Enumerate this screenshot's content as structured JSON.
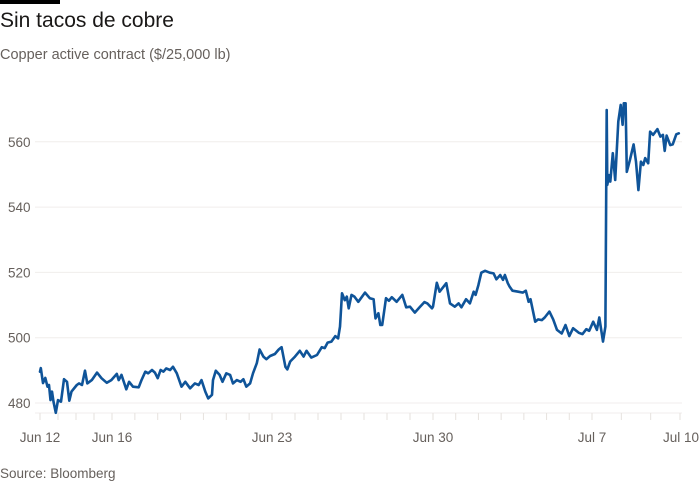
{
  "header": {
    "title": "Sin tacos de cobre",
    "subtitle": "Copper active contract ($/25,000 lb)"
  },
  "footer": {
    "source": "Source: Bloomberg"
  },
  "colors": {
    "line": "#0f5499",
    "grid": "#f0eeec",
    "text": "#66605c",
    "topbar": "#000000"
  },
  "chart_data": {
    "type": "line",
    "title": "Sin tacos de cobre",
    "subtitle": "Copper active contract ($/25,000 lb)",
    "xlabel": "",
    "ylabel": "",
    "ylim": [
      477,
      575
    ],
    "grid": "horizontal",
    "y_ticks": [
      480,
      500,
      520,
      540,
      560
    ],
    "x_ticks": [
      {
        "label": "Jun 12",
        "date": "06-12 00:00"
      },
      {
        "label": "Jun 16",
        "date": "06-16 00:00"
      },
      {
        "label": "Jun 23",
        "date": "06-23 00:00"
      },
      {
        "label": "Jun 30",
        "date": "06-30 00:00"
      },
      {
        "label": "Jul 7",
        "date": "07-07 00:00"
      },
      {
        "label": "Jul 10",
        "date": "07-10 00:00"
      }
    ],
    "series": [
      {
        "points": [
          [
            "06-12 00:00",
            489.6
          ],
          [
            "06-12 01:00",
            490.7
          ],
          [
            "06-12 04:00",
            486.1
          ],
          [
            "06-12 07:00",
            487.7
          ],
          [
            "06-12 10:00",
            485.0
          ],
          [
            "06-12 12:00",
            485.5
          ],
          [
            "06-12 14:00",
            480.9
          ],
          [
            "06-12 16:00",
            483.5
          ],
          [
            "06-12 18:00",
            480.4
          ],
          [
            "06-12 21:00",
            477.0
          ],
          [
            "06-13 00:00",
            480.9
          ],
          [
            "06-13 04:00",
            480.4
          ],
          [
            "06-13 08:00",
            487.3
          ],
          [
            "06-13 12:00",
            486.5
          ],
          [
            "06-13 15:00",
            480.7
          ],
          [
            "06-13 18:00",
            483.5
          ],
          [
            "06-14 01:00",
            485.5
          ],
          [
            "06-14 04:00",
            486.0
          ],
          [
            "06-14 08:00",
            485.5
          ],
          [
            "06-14 12:00",
            489.9
          ],
          [
            "06-14 15:00",
            486.0
          ],
          [
            "06-14 21:00",
            487.0
          ],
          [
            "06-15 04:00",
            489.3
          ],
          [
            "06-15 10:00",
            487.6
          ],
          [
            "06-15 17:00",
            486.2
          ],
          [
            "06-15 23:00",
            487.0
          ],
          [
            "06-16 05:00",
            488.9
          ],
          [
            "06-16 07:00",
            487.0
          ],
          [
            "06-16 10:00",
            488.6
          ],
          [
            "06-16 15:00",
            484.2
          ],
          [
            "06-16 18:00",
            486.5
          ],
          [
            "06-16 22:00",
            485.0
          ],
          [
            "06-17 04:00",
            484.8
          ],
          [
            "06-17 07:00",
            487.0
          ],
          [
            "06-17 11:00",
            489.6
          ],
          [
            "06-17 14:00",
            489.1
          ],
          [
            "06-17 18:00",
            490.1
          ],
          [
            "06-17 21:00",
            489.3
          ],
          [
            "06-18 00:00",
            487.6
          ],
          [
            "06-18 03:00",
            490.1
          ],
          [
            "06-18 06:00",
            489.6
          ],
          [
            "06-18 09:00",
            490.6
          ],
          [
            "06-18 13:00",
            490.1
          ],
          [
            "06-18 16:00",
            491.1
          ],
          [
            "06-18 20:00",
            489.1
          ],
          [
            "06-19 01:00",
            485.0
          ],
          [
            "06-19 05:00",
            486.5
          ],
          [
            "06-19 10:00",
            484.5
          ],
          [
            "06-19 15:00",
            486.0
          ],
          [
            "06-19 19:00",
            485.5
          ],
          [
            "06-19 22:00",
            487.0
          ],
          [
            "06-20 02:00",
            483.5
          ],
          [
            "06-20 05:00",
            481.4
          ],
          [
            "06-20 09:00",
            482.5
          ],
          [
            "06-20 10:00",
            487.0
          ],
          [
            "06-20 13:00",
            489.9
          ],
          [
            "06-20 17:00",
            488.6
          ],
          [
            "06-20 20:00",
            486.5
          ],
          [
            "06-21 00:00",
            489.1
          ],
          [
            "06-21 04:00",
            488.6
          ],
          [
            "06-21 07:00",
            486.0
          ],
          [
            "06-21 11:00",
            487.0
          ],
          [
            "06-21 15:00",
            486.5
          ],
          [
            "06-21 18:00",
            487.3
          ],
          [
            "06-21 21:00",
            485.0
          ],
          [
            "06-22 01:00",
            486.0
          ],
          [
            "06-22 04:00",
            489.1
          ],
          [
            "06-22 08:00",
            492.2
          ],
          [
            "06-22 11:00",
            496.4
          ],
          [
            "06-22 15:00",
            494.2
          ],
          [
            "06-22 18:00",
            493.4
          ],
          [
            "06-22 22:00",
            494.4
          ],
          [
            "06-23 03:00",
            495.0
          ],
          [
            "06-23 07:00",
            496.4
          ],
          [
            "06-23 10:00",
            497.1
          ],
          [
            "06-23 14:00",
            491.1
          ],
          [
            "06-23 16:00",
            490.3
          ],
          [
            "06-23 19:00",
            492.7
          ],
          [
            "06-24 00:00",
            494.2
          ],
          [
            "06-24 05:00",
            496.0
          ],
          [
            "06-24 09:00",
            494.2
          ],
          [
            "06-24 12:00",
            496.0
          ],
          [
            "06-24 17:00",
            493.9
          ],
          [
            "06-24 23:00",
            494.7
          ],
          [
            "06-25 04:00",
            497.1
          ],
          [
            "06-25 07:00",
            496.8
          ],
          [
            "06-25 10:00",
            498.5
          ],
          [
            "06-25 14:00",
            498.8
          ],
          [
            "06-25 18:00",
            500.5
          ],
          [
            "06-25 21:00",
            499.8
          ],
          [
            "06-25 23:00",
            503.4
          ],
          [
            "06-26 01:00",
            513.6
          ],
          [
            "06-26 04:00",
            511.5
          ],
          [
            "06-26 06:00",
            512.6
          ],
          [
            "06-26 08:00",
            509.0
          ],
          [
            "06-26 11:00",
            513.1
          ],
          [
            "06-26 14:00",
            512.6
          ],
          [
            "06-26 18:00",
            511.0
          ],
          [
            "06-27 01:00",
            513.8
          ],
          [
            "06-27 06:00",
            512.1
          ],
          [
            "06-27 10:00",
            511.8
          ],
          [
            "06-27 12:00",
            505.9
          ],
          [
            "06-27 15:00",
            507.5
          ],
          [
            "06-27 17:00",
            503.9
          ],
          [
            "06-27 19:00",
            503.9
          ],
          [
            "06-27 23:00",
            512.1
          ],
          [
            "06-28 02:00",
            511.3
          ],
          [
            "06-28 05:00",
            512.4
          ],
          [
            "06-28 10:00",
            511.0
          ],
          [
            "06-28 16:00",
            513.1
          ],
          [
            "06-28 20:00",
            509.3
          ],
          [
            "06-29 00:00",
            509.5
          ],
          [
            "06-29 05:00",
            507.7
          ],
          [
            "06-29 10:00",
            509.3
          ],
          [
            "06-29 15:00",
            510.9
          ],
          [
            "06-29 18:00",
            510.5
          ],
          [
            "06-29 23:00",
            509.0
          ],
          [
            "06-30 00:00",
            509.5
          ],
          [
            "06-30 04:00",
            516.8
          ],
          [
            "06-30 07:00",
            514.1
          ],
          [
            "06-30 14:00",
            516.7
          ],
          [
            "06-30 18:00",
            510.5
          ],
          [
            "06-30 23:00",
            509.5
          ],
          [
            "07-01 03:00",
            510.5
          ],
          [
            "07-01 06:00",
            509.3
          ],
          [
            "07-01 11:00",
            511.8
          ],
          [
            "07-01 15:00",
            510.5
          ],
          [
            "07-01 19:00",
            514.1
          ],
          [
            "07-01 21:00",
            513.1
          ],
          [
            "07-02 00:00",
            516.1
          ],
          [
            "07-02 03:00",
            519.9
          ],
          [
            "07-02 07:00",
            520.5
          ],
          [
            "07-02 12:00",
            519.9
          ],
          [
            "07-02 16:00",
            519.7
          ],
          [
            "07-02 19:00",
            517.9
          ],
          [
            "07-02 23:00",
            519.2
          ],
          [
            "07-03 02:00",
            517.7
          ],
          [
            "07-03 04:00",
            519.2
          ],
          [
            "07-03 07:00",
            516.7
          ],
          [
            "07-03 09:00",
            515.6
          ],
          [
            "07-03 12:00",
            514.4
          ],
          [
            "07-03 18:00",
            514.1
          ],
          [
            "07-03 23:00",
            513.8
          ],
          [
            "07-04 02:00",
            514.4
          ],
          [
            "07-04 05:00",
            511.0
          ],
          [
            "07-04 07:00",
            511.8
          ],
          [
            "07-04 12:00",
            504.9
          ],
          [
            "07-04 15:00",
            505.6
          ],
          [
            "07-04 19:00",
            505.4
          ],
          [
            "07-04 22:00",
            506.2
          ],
          [
            "07-05 03:00",
            508.0
          ],
          [
            "07-05 07:00",
            505.6
          ],
          [
            "07-05 11:00",
            502.4
          ],
          [
            "07-05 16:00",
            501.3
          ],
          [
            "07-05 20:00",
            503.9
          ],
          [
            "07-06 00:00",
            500.5
          ],
          [
            "07-06 04:00",
            502.9
          ],
          [
            "07-06 10:00",
            501.5
          ],
          [
            "07-06 14:00",
            501.1
          ],
          [
            "07-06 18:00",
            502.6
          ],
          [
            "07-06 21:00",
            502.1
          ],
          [
            "07-07 01:00",
            504.9
          ],
          [
            "07-07 04:00",
            502.4
          ],
          [
            "07-07 06:00",
            506.2
          ],
          [
            "07-07 09:00",
            498.8
          ],
          [
            "07-07 11:00",
            503.4
          ],
          [
            "07-07 12:00",
            569.7
          ],
          [
            "07-07 12:30",
            546.8
          ],
          [
            "07-07 14:00",
            549.8
          ],
          [
            "07-07 15:00",
            547.8
          ],
          [
            "07-07 17:00",
            556.5
          ],
          [
            "07-07 19:00",
            548.3
          ],
          [
            "07-07 21:30",
            566.2
          ],
          [
            "07-07 23:30",
            571.3
          ],
          [
            "07-08 01:00",
            565.2
          ],
          [
            "07-08 02:00",
            571.8
          ],
          [
            "07-08 03:30",
            571.8
          ],
          [
            "07-08 04:30",
            550.8
          ],
          [
            "07-08 07:00",
            554.4
          ],
          [
            "07-08 10:00",
            559.2
          ],
          [
            "07-08 12:00",
            553.9
          ],
          [
            "07-08 14:00",
            545.2
          ],
          [
            "07-08 16:00",
            553.9
          ],
          [
            "07-08 18:00",
            552.9
          ],
          [
            "07-08 19:30",
            555.0
          ],
          [
            "07-08 22:00",
            553.4
          ],
          [
            "07-08 23:30",
            563.1
          ],
          [
            "07-09 02:00",
            562.1
          ],
          [
            "07-09 05:30",
            563.9
          ],
          [
            "07-09 08:00",
            561.6
          ],
          [
            "07-09 10:00",
            562.1
          ],
          [
            "07-09 11:30",
            557.2
          ],
          [
            "07-09 13:00",
            561.9
          ],
          [
            "07-09 16:00",
            559.0
          ],
          [
            "07-09 18:00",
            559.2
          ],
          [
            "07-09 21:00",
            562.3
          ],
          [
            "07-09 23:00",
            562.6
          ]
        ]
      }
    ]
  }
}
